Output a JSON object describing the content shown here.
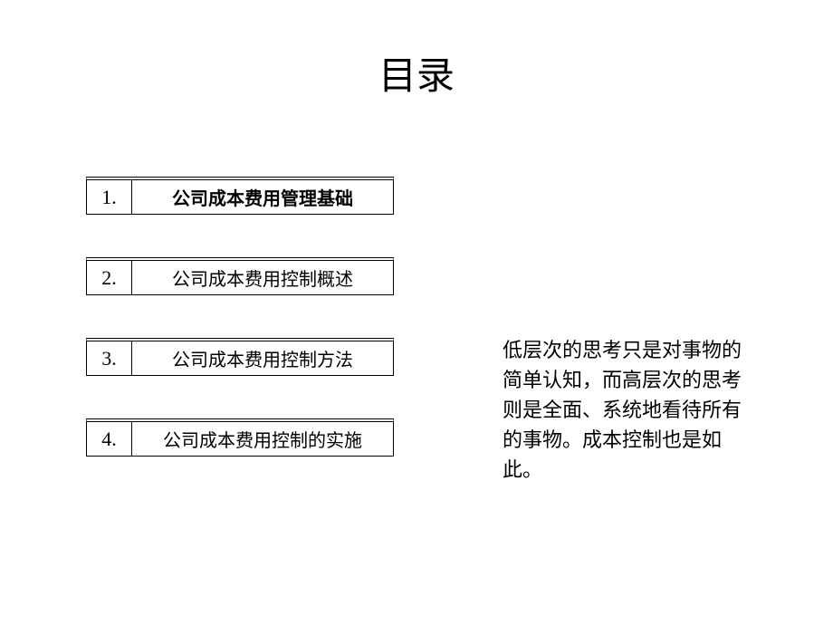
{
  "title": "目录",
  "toc": {
    "items": [
      {
        "number": "1.",
        "text": "公司成本费用管理基础",
        "active": true
      },
      {
        "number": "2.",
        "text": "公司成本费用控制概述",
        "active": false
      },
      {
        "number": "3.",
        "text": "公司成本费用控制方法",
        "active": false
      },
      {
        "number": "4.",
        "text": "公司成本费用控制的实施",
        "active": false
      }
    ]
  },
  "sideText": "低层次的思考只是对事物的简单认知，而高层次的思考则是全面、系统地看待所有的事物。成本控制也是如此。",
  "colors": {
    "background": "#ffffff",
    "text": "#000000",
    "border": "#000000"
  }
}
